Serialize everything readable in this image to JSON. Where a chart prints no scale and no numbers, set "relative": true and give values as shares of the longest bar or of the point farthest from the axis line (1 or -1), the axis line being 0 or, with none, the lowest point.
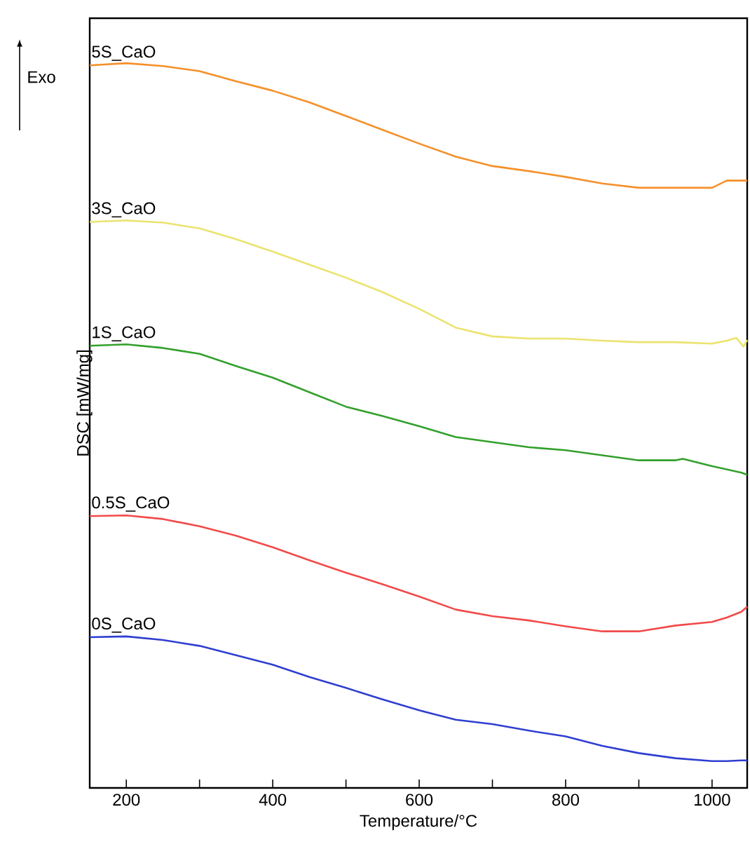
{
  "chart_data": {
    "type": "line",
    "xlabel": "Temperature/°C",
    "ylabel": "DSC [mW/mg]",
    "relative": true,
    "annotations": [
      "Exo"
    ],
    "xlim": [
      150,
      1048
    ],
    "xticks": [
      200,
      {
        "value": 300,
        "label": null
      },
      400,
      {
        "value": 500,
        "label": null
      },
      600,
      {
        "value": 700,
        "label": null
      },
      800,
      {
        "value": 900,
        "label": null
      },
      1000
    ],
    "grid": false,
    "marker": "none",
    "line_style": "solid",
    "series": [
      {
        "name": "5S_CaO",
        "color": "#f5902a",
        "x": [
          150,
          200,
          250,
          300,
          350,
          400,
          450,
          500,
          550,
          600,
          650,
          700,
          750,
          800,
          850,
          900,
          950,
          1000,
          1020,
          1040,
          1048
        ],
        "values": [
          0.997,
          1.0,
          0.996,
          0.989,
          0.975,
          0.962,
          0.946,
          0.927,
          0.908,
          0.889,
          0.871,
          0.858,
          0.851,
          0.843,
          0.834,
          0.828,
          0.828,
          0.828,
          0.838,
          0.838,
          0.838
        ]
      },
      {
        "name": "3S_CaO",
        "color": "#ebe36e",
        "x": [
          150,
          200,
          250,
          300,
          350,
          400,
          450,
          500,
          550,
          600,
          650,
          700,
          750,
          800,
          850,
          900,
          950,
          1000,
          1020,
          1033,
          1043,
          1048
        ],
        "values": [
          0.781,
          0.783,
          0.78,
          0.772,
          0.757,
          0.74,
          0.722,
          0.704,
          0.684,
          0.661,
          0.635,
          0.623,
          0.62,
          0.62,
          0.617,
          0.615,
          0.615,
          0.613,
          0.617,
          0.621,
          0.609,
          0.618
        ]
      },
      {
        "name": "1S_CaO",
        "color": "#33a02c",
        "x": [
          150,
          200,
          250,
          300,
          350,
          400,
          450,
          500,
          550,
          600,
          650,
          700,
          750,
          800,
          850,
          900,
          950,
          960,
          1000,
          1040,
          1048
        ],
        "values": [
          0.61,
          0.612,
          0.607,
          0.599,
          0.582,
          0.566,
          0.546,
          0.526,
          0.513,
          0.499,
          0.484,
          0.477,
          0.47,
          0.466,
          0.459,
          0.452,
          0.452,
          0.454,
          0.444,
          0.435,
          0.432
        ]
      },
      {
        "name": "0.5S_CaO",
        "color": "#f24a4a",
        "x": [
          150,
          200,
          250,
          300,
          350,
          400,
          450,
          500,
          550,
          600,
          650,
          700,
          750,
          800,
          850,
          900,
          950,
          1000,
          1020,
          1040,
          1048
        ],
        "values": [
          0.375,
          0.376,
          0.371,
          0.361,
          0.348,
          0.332,
          0.314,
          0.297,
          0.281,
          0.264,
          0.246,
          0.237,
          0.231,
          0.223,
          0.216,
          0.216,
          0.224,
          0.229,
          0.235,
          0.243,
          0.25
        ]
      },
      {
        "name": "0S_CaO",
        "color": "#2f3fd0",
        "x": [
          150,
          200,
          250,
          300,
          350,
          400,
          450,
          500,
          550,
          600,
          650,
          700,
          750,
          800,
          850,
          900,
          950,
          1000,
          1020,
          1040,
          1048
        ],
        "values": [
          0.208,
          0.209,
          0.204,
          0.196,
          0.183,
          0.17,
          0.153,
          0.138,
          0.122,
          0.107,
          0.094,
          0.088,
          0.079,
          0.071,
          0.058,
          0.048,
          0.041,
          0.037,
          0.037,
          0.038,
          0.038
        ]
      }
    ]
  }
}
